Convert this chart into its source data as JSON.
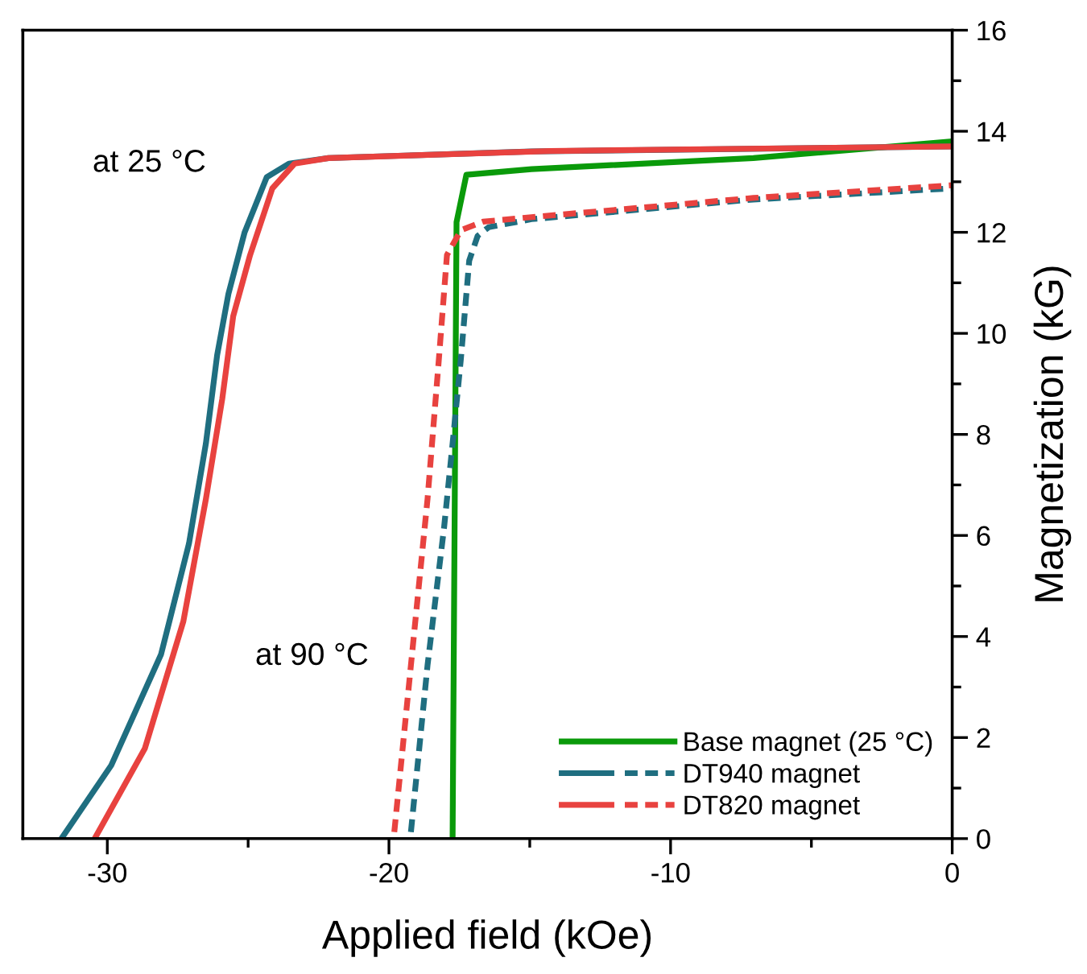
{
  "chart_data": {
    "type": "line",
    "xlabel": "Applied field (kOe)",
    "ylabel": "Magnetization (kG)",
    "xlim": [
      -33,
      0
    ],
    "xticks": [
      -30,
      -20,
      -10,
      0
    ],
    "ylim": [
      0,
      16
    ],
    "yticks": [
      0,
      2,
      4,
      6,
      8,
      10,
      12,
      14,
      16
    ],
    "grid": false,
    "legend": "bottom right",
    "marker": "none",
    "annotations": [
      "at 25 °C",
      "at 90 °C"
    ],
    "series": [
      {
        "name": "Base magnet (25 °C)",
        "color": "#0a9a0a",
        "line_style": "solid",
        "x": [
          -17.74,
          -17.6,
          -17.25,
          -14.94,
          -7.06,
          0
        ],
        "values": [
          0,
          12.2,
          13.14,
          13.25,
          13.47,
          13.8
        ]
      },
      {
        "color": "#1f6e80",
        "line_style": "solid",
        "x": [
          -31.63,
          -29.86,
          -28.09,
          -27.1,
          -26.5,
          -26.1,
          -25.7,
          -25.13,
          -24.34,
          -23.55,
          -22.15,
          -14.94,
          0
        ],
        "values": [
          0,
          1.45,
          3.65,
          5.84,
          7.82,
          9.57,
          10.78,
          11.99,
          13.09,
          13.36,
          13.47,
          13.6,
          13.7
        ]
      },
      {
        "name": "DT940 magnet",
        "color": "#1f6e80",
        "line_style": "dashed",
        "x": [
          -19.22,
          -18.63,
          -18.04,
          -17.74,
          -17.45,
          -17.15,
          -16.85,
          -16.46,
          -14.94,
          -7.06,
          0
        ],
        "values": [
          0.13,
          3.43,
          6.17,
          7.82,
          9.47,
          11.44,
          11.93,
          12.1,
          12.26,
          12.65,
          12.87
        ]
      },
      {
        "color": "#e8423f",
        "line_style": "solid",
        "x": [
          -30.45,
          -28.67,
          -27.3,
          -26.5,
          -25.92,
          -25.53,
          -24.93,
          -24.14,
          -23.35,
          -22.15,
          -14.29,
          0
        ],
        "values": [
          0,
          1.78,
          4.3,
          6.72,
          8.7,
          10.34,
          11.55,
          12.87,
          13.36,
          13.47,
          13.61,
          13.7
        ]
      },
      {
        "name": "DT820 magnet",
        "color": "#e8423f",
        "line_style": "dashed",
        "x": [
          -19.81,
          -19.22,
          -18.63,
          -18.23,
          -17.94,
          -17.45,
          -16.66,
          -14.94,
          -7.06,
          0
        ],
        "values": [
          0.13,
          3.43,
          6.72,
          9.47,
          11.55,
          12.04,
          12.21,
          12.3,
          12.68,
          12.93
        ]
      }
    ]
  }
}
